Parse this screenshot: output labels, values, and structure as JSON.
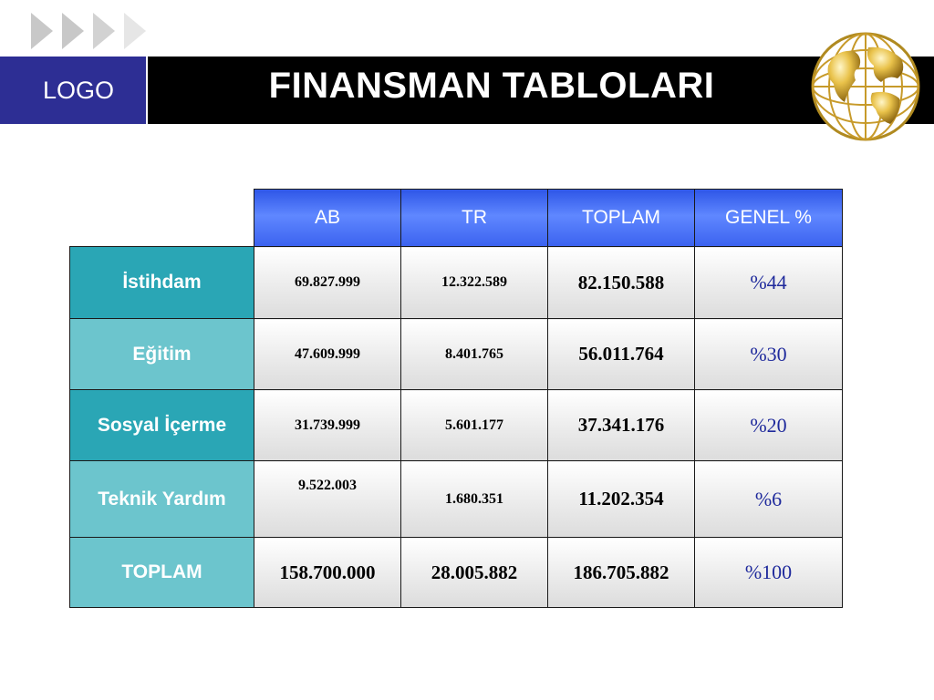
{
  "header": {
    "logo": "LOGO",
    "title": "FINANSMAN TABLOLARI",
    "chevron_icon": "chevrons-right-icon",
    "globe_icon": "globe-icon"
  },
  "table": {
    "columns": [
      "AB",
      "TR",
      "TOPLAM",
      "GENEL %"
    ],
    "rows": [
      {
        "label": "İstihdam",
        "ab": "69.827.999",
        "tr": "12.322.589",
        "toplam": "82.150.588",
        "genel": "%44"
      },
      {
        "label": "Eğitim",
        "ab": "47.609.999",
        "tr": "8.401.765",
        "toplam": "56.011.764",
        "genel": "%30"
      },
      {
        "label": "Sosyal İçerme",
        "ab": "31.739.999",
        "tr": "5.601.177",
        "toplam": "37.341.176",
        "genel": "%20"
      },
      {
        "label": "Teknik Yardım",
        "ab": "9.522.003",
        "tr": "1.680.351",
        "toplam": "11.202.354",
        "genel": "%6"
      },
      {
        "label": "TOPLAM",
        "ab": "158.700.000",
        "tr": "28.005.882",
        "toplam": "186.705.882",
        "genel": "%100"
      }
    ]
  },
  "colors": {
    "logo_bg": "#2d2e94",
    "title_bar": "#000000",
    "header_blue": "#4a72f5",
    "row_label_dark": "#2aa6b5",
    "row_label_light": "#6cc5cd",
    "percent_text": "#1f2a9c"
  }
}
